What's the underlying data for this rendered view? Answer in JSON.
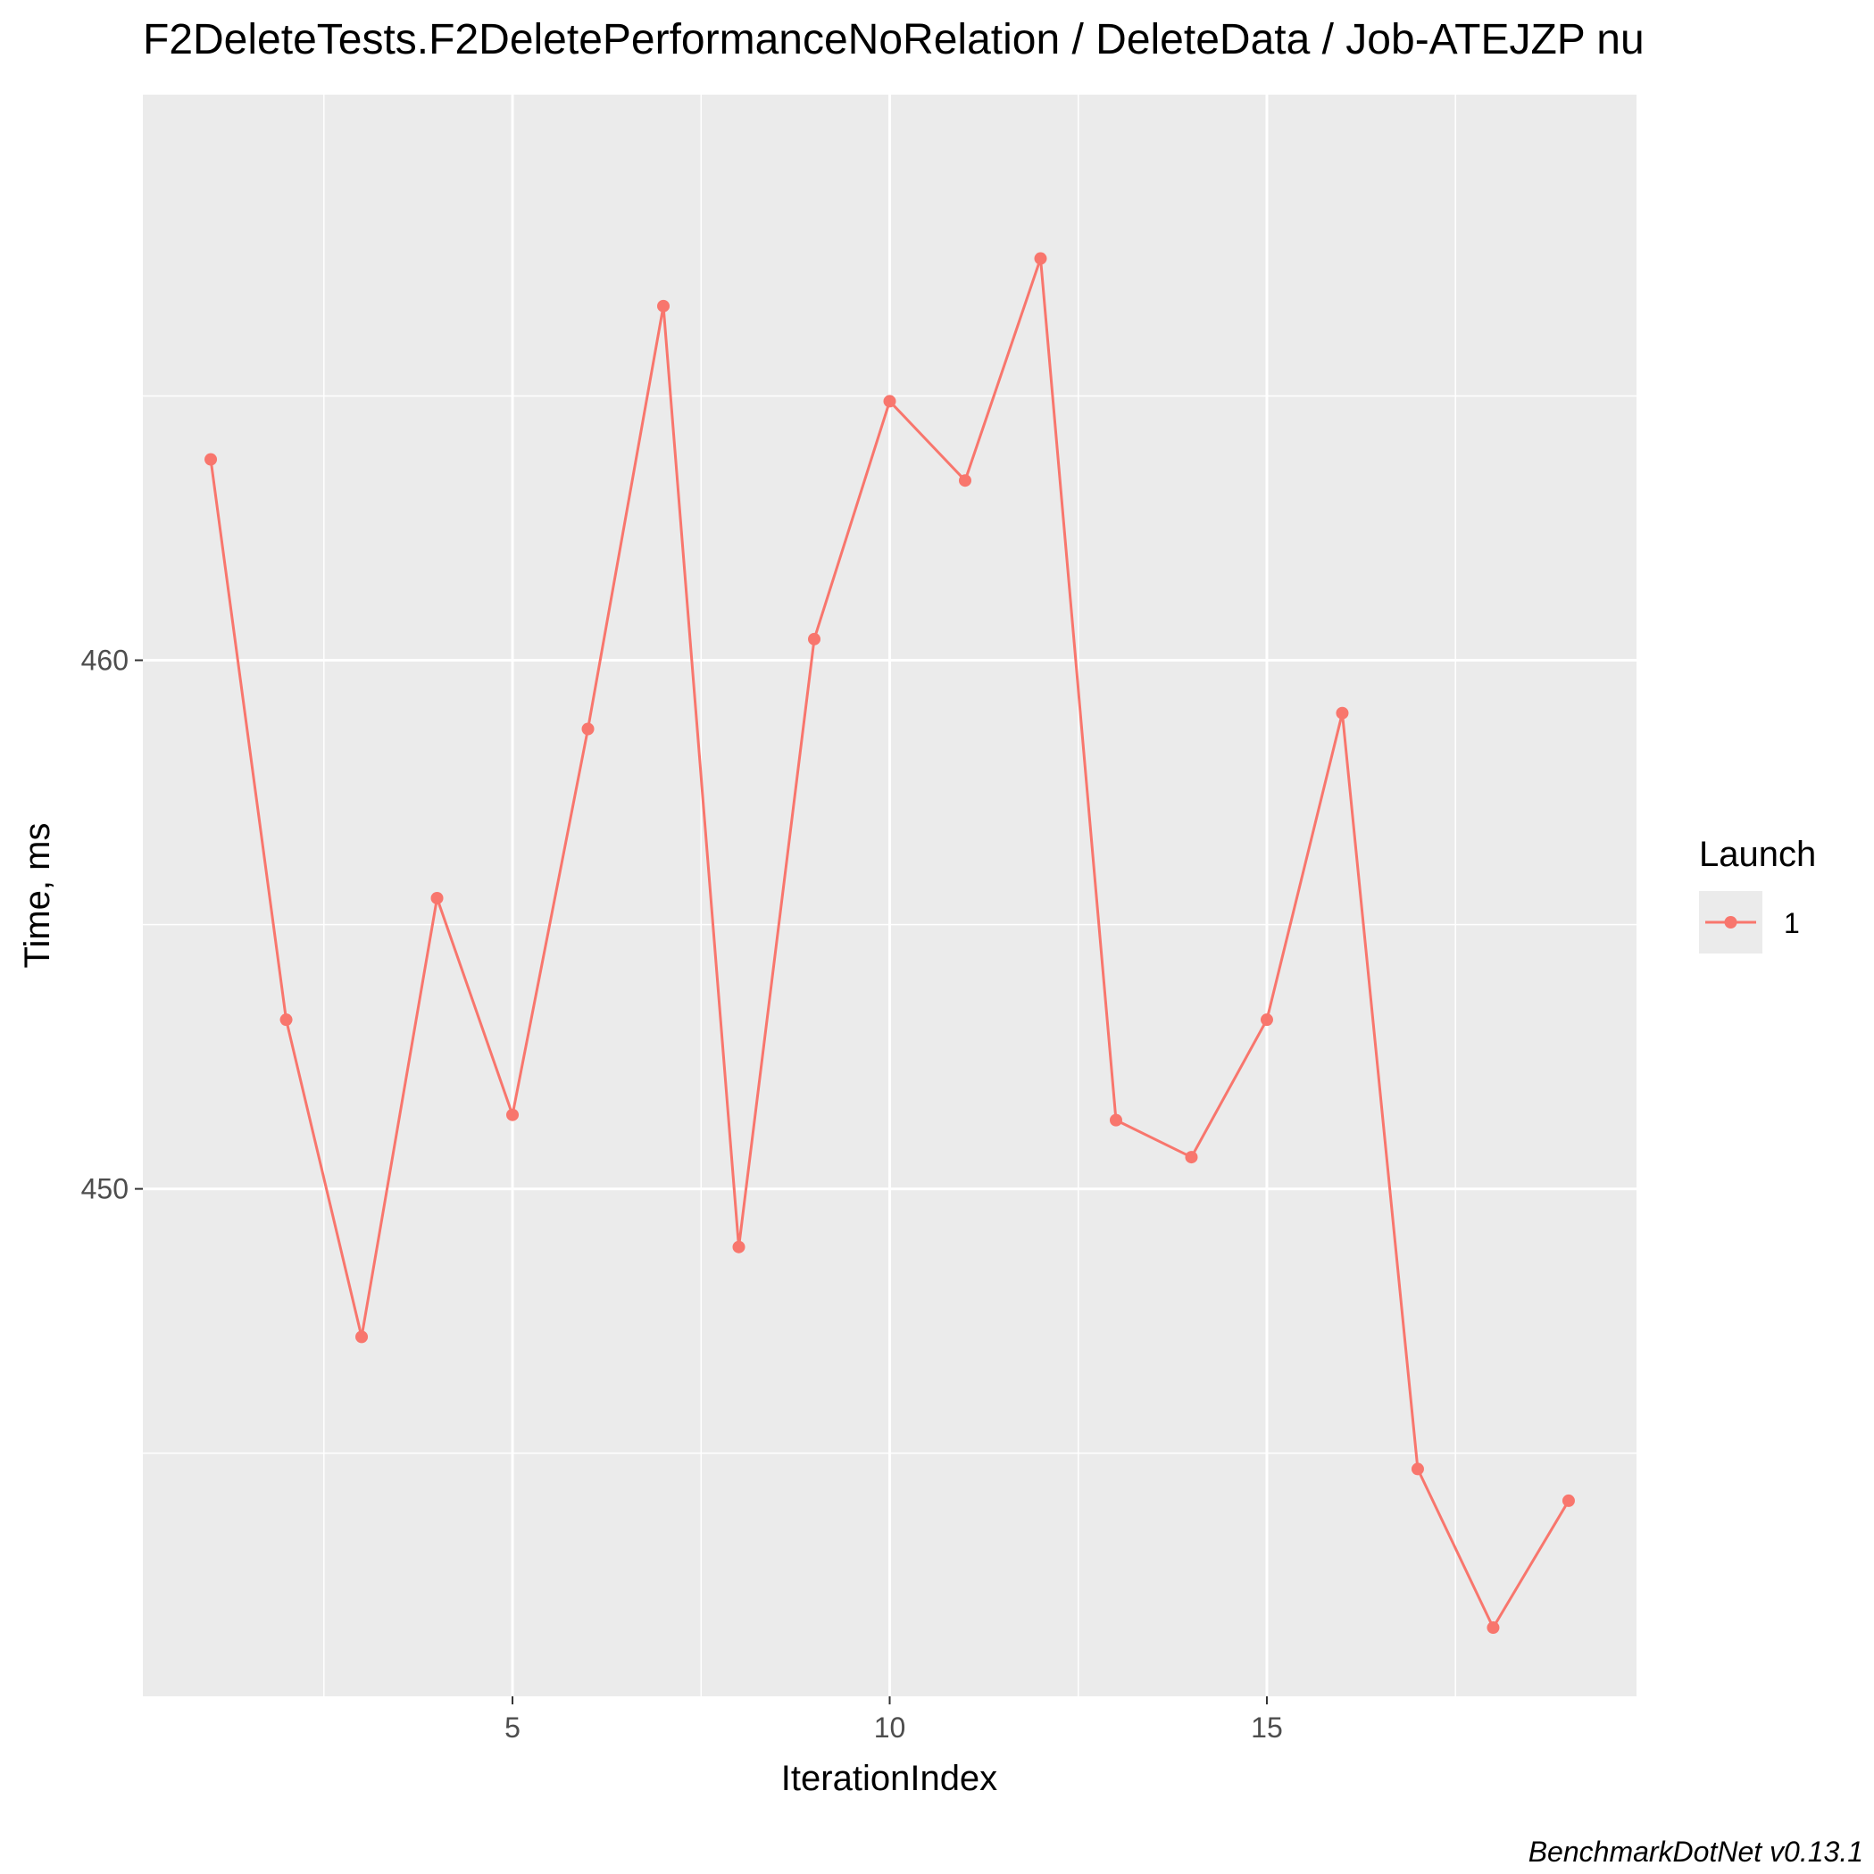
{
  "chart_data": {
    "type": "line",
    "title": "F2DeleteTests.F2DeletePerformanceNoRelation / DeleteData / Job-ATEJZP nu",
    "xlabel": "IterationIndex",
    "ylabel": "Time, ms",
    "caption": "BenchmarkDotNet v0.13.1",
    "xlim": [
      0.1,
      19.9
    ],
    "ylim": [
      440.4,
      470.7
    ],
    "x_ticks": [
      5,
      10,
      15
    ],
    "x_tick_labels": [
      "5",
      "10",
      "15"
    ],
    "y_ticks": [
      450,
      460
    ],
    "y_tick_labels": [
      "450",
      "460"
    ],
    "grid": true,
    "legend": {
      "title": "Launch",
      "position": "right",
      "entries": [
        "1"
      ]
    },
    "colors": {
      "series": "#f8766d",
      "panel": "#ebebeb",
      "grid": "#ffffff"
    },
    "series": [
      {
        "name": "1",
        "x": [
          1,
          2,
          3,
          4,
          5,
          6,
          7,
          8,
          9,
          10,
          11,
          12,
          13,
          14,
          15,
          16,
          17,
          18,
          19
        ],
        "values": [
          463.8,
          453.2,
          447.2,
          455.5,
          451.4,
          458.7,
          466.7,
          448.9,
          460.4,
          464.9,
          463.4,
          467.6,
          451.3,
          450.6,
          453.2,
          459.0,
          444.7,
          441.7,
          444.1
        ]
      }
    ]
  }
}
